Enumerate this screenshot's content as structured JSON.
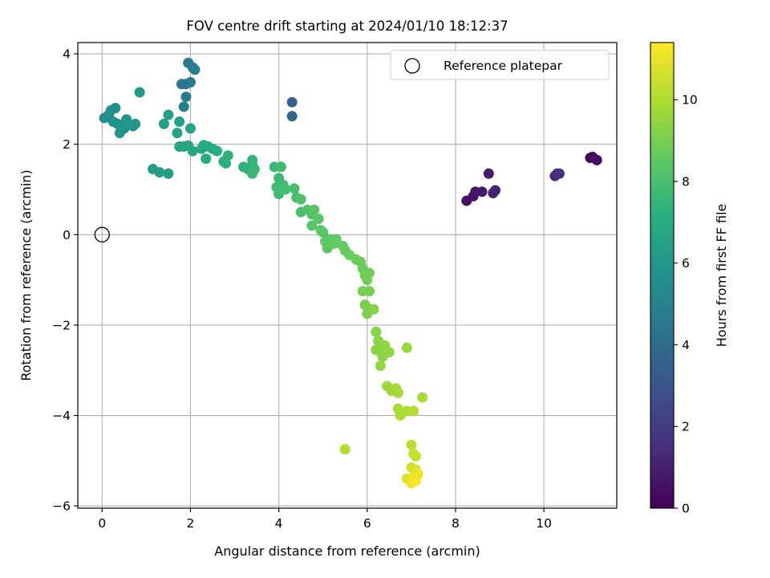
{
  "chart_data": {
    "type": "scatter",
    "title": "FOV centre drift starting at 2024/01/10 18:12:37",
    "xlabel": "Angular distance from reference (arcmin)",
    "ylabel": "Rotation from reference (arcmin)",
    "xlim": [
      -0.55,
      11.65
    ],
    "ylim": [
      -6.05,
      4.25
    ],
    "xticks": [
      0,
      2,
      4,
      6,
      8,
      10
    ],
    "xtick_labels": [
      "0",
      "2",
      "4",
      "6",
      "8",
      "10"
    ],
    "yticks": [
      4,
      2,
      0,
      -2,
      -4,
      -6
    ],
    "ytick_labels": [
      "4",
      "2",
      "0",
      "−2",
      "−4",
      "−6"
    ],
    "grid": true,
    "legend": {
      "position": "top-right",
      "entries": [
        "Reference platepar"
      ]
    },
    "reference_point": {
      "x": 0,
      "y": 0,
      "marker": "hollow-circle"
    },
    "colorbar": {
      "label": "Hours from first FF file",
      "colormap": "viridis",
      "range": [
        0,
        11.4
      ],
      "ticks": [
        0,
        2,
        4,
        6,
        8,
        10
      ],
      "tick_labels": [
        "0",
        "2",
        "4",
        "6",
        "8",
        "10"
      ]
    },
    "colormap_stops": [
      "#440154",
      "#472d7b",
      "#3b528b",
      "#2c728e",
      "#21918c",
      "#28ae80",
      "#5ec962",
      "#addc30",
      "#fde725"
    ],
    "series": [
      {
        "color_variable": "hours",
        "points": [
          [
            8.25,
            0.75,
            0.5
          ],
          [
            8.4,
            0.85,
            0.6
          ],
          [
            8.45,
            0.95,
            0.7
          ],
          [
            8.6,
            0.95,
            0.8
          ],
          [
            8.75,
            1.35,
            0.9
          ],
          [
            8.85,
            0.92,
            1.0
          ],
          [
            8.9,
            0.98,
            1.1
          ],
          [
            10.25,
            1.3,
            1.4
          ],
          [
            10.3,
            1.35,
            1.5
          ],
          [
            10.35,
            1.35,
            1.6
          ],
          [
            11.05,
            1.7,
            0.2
          ],
          [
            11.1,
            1.72,
            0.3
          ],
          [
            11.2,
            1.65,
            0.4
          ],
          [
            4.3,
            2.93,
            3.6
          ],
          [
            4.3,
            2.62,
            3.8
          ],
          [
            1.8,
            3.33,
            4.4
          ],
          [
            1.9,
            3.33,
            4.5
          ],
          [
            2.0,
            3.37,
            4.5
          ],
          [
            1.95,
            3.8,
            4.6
          ],
          [
            2.05,
            3.7,
            4.6
          ],
          [
            2.1,
            3.65,
            4.7
          ],
          [
            1.85,
            2.83,
            4.8
          ],
          [
            1.9,
            3.05,
            4.8
          ],
          [
            0.05,
            2.58,
            5.5
          ],
          [
            0.15,
            2.65,
            5.6
          ],
          [
            0.2,
            2.75,
            5.6
          ],
          [
            0.3,
            2.8,
            5.7
          ],
          [
            0.25,
            2.5,
            5.7
          ],
          [
            0.35,
            2.45,
            5.8
          ],
          [
            0.4,
            2.25,
            5.8
          ],
          [
            0.5,
            2.35,
            5.9
          ],
          [
            0.55,
            2.55,
            5.9
          ],
          [
            0.6,
            2.45,
            6.0
          ],
          [
            0.7,
            2.4,
            6.0
          ],
          [
            0.75,
            2.45,
            6.0
          ],
          [
            0.85,
            3.15,
            6.1
          ],
          [
            1.15,
            1.45,
            6.2
          ],
          [
            1.3,
            1.38,
            6.3
          ],
          [
            1.5,
            1.35,
            6.3
          ],
          [
            1.4,
            2.45,
            6.4
          ],
          [
            1.5,
            2.65,
            6.4
          ],
          [
            1.75,
            2.5,
            6.5
          ],
          [
            1.7,
            2.25,
            6.5
          ],
          [
            2.0,
            2.35,
            6.6
          ],
          [
            1.75,
            1.95,
            6.7
          ],
          [
            1.85,
            1.95,
            6.7
          ],
          [
            1.95,
            1.97,
            6.8
          ],
          [
            2.05,
            1.85,
            6.8
          ],
          [
            2.25,
            1.9,
            6.9
          ],
          [
            2.3,
            1.98,
            6.9
          ],
          [
            2.4,
            1.95,
            7.0
          ],
          [
            2.5,
            1.9,
            7.0
          ],
          [
            2.6,
            1.85,
            7.1
          ],
          [
            2.35,
            1.68,
            7.1
          ],
          [
            2.75,
            1.62,
            7.2
          ],
          [
            2.8,
            1.58,
            7.2
          ],
          [
            2.85,
            1.75,
            7.3
          ],
          [
            3.2,
            1.5,
            7.3
          ],
          [
            3.3,
            1.45,
            7.4
          ],
          [
            3.4,
            1.55,
            7.4
          ],
          [
            3.4,
            1.65,
            7.5
          ],
          [
            3.45,
            1.45,
            7.5
          ],
          [
            3.4,
            1.35,
            7.6
          ],
          [
            3.9,
            1.5,
            7.6
          ],
          [
            4.05,
            1.5,
            7.7
          ],
          [
            4.0,
            1.25,
            7.7
          ],
          [
            3.95,
            1.05,
            7.8
          ],
          [
            4.0,
            0.9,
            7.8
          ],
          [
            4.1,
            1.1,
            7.9
          ],
          [
            4.15,
            1.0,
            7.9
          ],
          [
            4.35,
            1.02,
            8.0
          ],
          [
            4.4,
            0.82,
            8.0
          ],
          [
            4.5,
            0.78,
            8.1
          ],
          [
            4.5,
            0.5,
            8.1
          ],
          [
            4.65,
            0.55,
            8.2
          ],
          [
            4.75,
            0.45,
            8.2
          ],
          [
            4.8,
            0.55,
            8.3
          ],
          [
            4.75,
            0.2,
            8.3
          ],
          [
            4.9,
            0.35,
            8.4
          ],
          [
            4.95,
            0.1,
            8.4
          ],
          [
            5.0,
            0.05,
            8.4
          ],
          [
            5.05,
            -0.15,
            8.5
          ],
          [
            5.15,
            -0.1,
            8.5
          ],
          [
            5.1,
            -0.3,
            8.5
          ],
          [
            5.25,
            -0.2,
            8.6
          ],
          [
            5.3,
            -0.1,
            8.6
          ],
          [
            5.45,
            -0.25,
            8.6
          ],
          [
            5.5,
            -0.35,
            8.7
          ],
          [
            5.6,
            -0.45,
            8.7
          ],
          [
            5.75,
            -0.55,
            8.8
          ],
          [
            5.85,
            -0.6,
            8.8
          ],
          [
            5.9,
            -0.75,
            8.8
          ],
          [
            5.95,
            -0.9,
            8.9
          ],
          [
            6.05,
            -0.85,
            8.9
          ],
          [
            6.0,
            -1.0,
            8.9
          ],
          [
            5.9,
            -1.25,
            9.0
          ],
          [
            6.05,
            -1.25,
            9.0
          ],
          [
            5.95,
            -1.55,
            9.1
          ],
          [
            6.05,
            -1.65,
            9.1
          ],
          [
            6.0,
            -1.75,
            9.1
          ],
          [
            6.15,
            -1.65,
            9.2
          ],
          [
            6.2,
            -2.15,
            9.3
          ],
          [
            6.25,
            -2.35,
            9.3
          ],
          [
            6.2,
            -2.55,
            9.4
          ],
          [
            6.3,
            -2.6,
            9.4
          ],
          [
            6.35,
            -2.7,
            9.4
          ],
          [
            6.4,
            -2.45,
            9.5
          ],
          [
            6.5,
            -2.6,
            9.5
          ],
          [
            6.3,
            -2.9,
            9.5
          ],
          [
            6.9,
            -2.5,
            9.6
          ],
          [
            6.45,
            -3.35,
            9.7
          ],
          [
            6.55,
            -3.45,
            9.7
          ],
          [
            6.65,
            -3.4,
            9.8
          ],
          [
            6.7,
            -3.5,
            9.8
          ],
          [
            7.25,
            -3.6,
            9.9
          ],
          [
            6.7,
            -3.85,
            9.9
          ],
          [
            6.75,
            -4.0,
            10.0
          ],
          [
            6.9,
            -3.9,
            10.0
          ],
          [
            7.05,
            -3.9,
            10.1
          ],
          [
            5.5,
            -4.75,
            10.1
          ],
          [
            7.0,
            -4.65,
            10.2
          ],
          [
            7.05,
            -4.85,
            10.3
          ],
          [
            7.1,
            -4.9,
            10.4
          ],
          [
            7.0,
            -5.15,
            10.6
          ],
          [
            7.1,
            -5.2,
            10.8
          ],
          [
            6.9,
            -5.4,
            10.9
          ],
          [
            7.05,
            -5.35,
            11.0
          ],
          [
            7.15,
            -5.3,
            11.1
          ],
          [
            7.0,
            -5.5,
            11.2
          ],
          [
            7.1,
            -5.45,
            11.3
          ]
        ]
      }
    ]
  }
}
